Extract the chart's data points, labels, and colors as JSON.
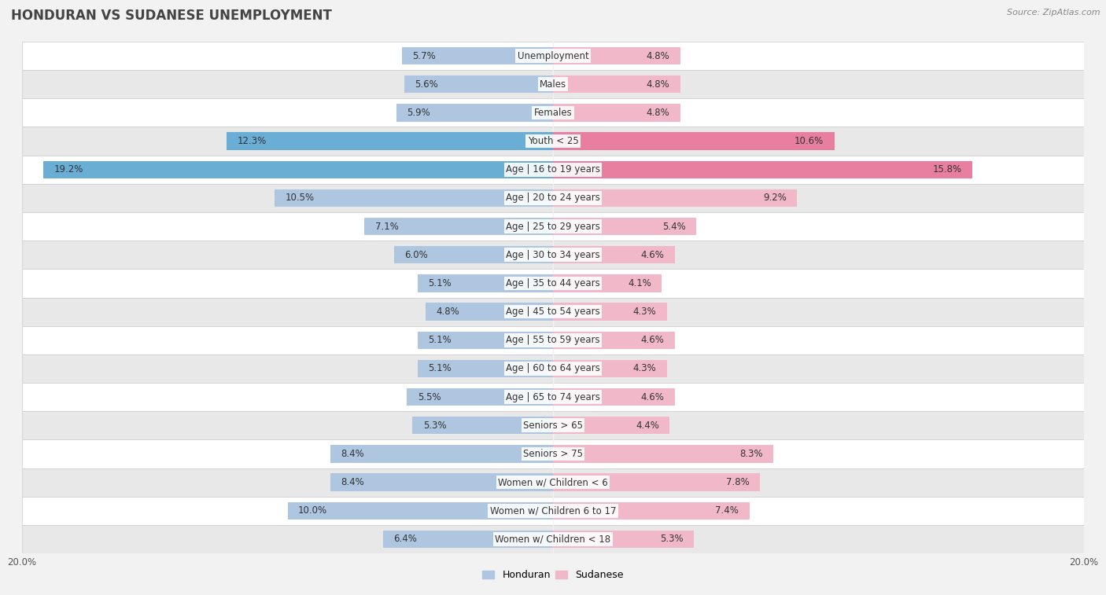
{
  "title": "HONDURAN VS SUDANESE UNEMPLOYMENT",
  "source": "Source: ZipAtlas.com",
  "categories": [
    "Unemployment",
    "Males",
    "Females",
    "Youth < 25",
    "Age | 16 to 19 years",
    "Age | 20 to 24 years",
    "Age | 25 to 29 years",
    "Age | 30 to 34 years",
    "Age | 35 to 44 years",
    "Age | 45 to 54 years",
    "Age | 55 to 59 years",
    "Age | 60 to 64 years",
    "Age | 65 to 74 years",
    "Seniors > 65",
    "Seniors > 75",
    "Women w/ Children < 6",
    "Women w/ Children 6 to 17",
    "Women w/ Children < 18"
  ],
  "honduran": [
    5.7,
    5.6,
    5.9,
    12.3,
    19.2,
    10.5,
    7.1,
    6.0,
    5.1,
    4.8,
    5.1,
    5.1,
    5.5,
    5.3,
    8.4,
    8.4,
    10.0,
    6.4
  ],
  "sudanese": [
    4.8,
    4.8,
    4.8,
    10.6,
    15.8,
    9.2,
    5.4,
    4.6,
    4.1,
    4.3,
    4.6,
    4.3,
    4.6,
    4.4,
    8.3,
    7.8,
    7.4,
    5.3
  ],
  "honduran_color_normal": "#aec6e0",
  "sudanese_color_normal": "#f0b8c8",
  "honduran_color_highlight": "#6aaed6",
  "sudanese_color_highlight": "#e87fa0",
  "highlight_rows": [
    3,
    4
  ],
  "bar_height": 0.62,
  "max_val": 20.0,
  "fig_bg": "#f2f2f2",
  "row_bg_odd": "#ffffff",
  "row_bg_even": "#e8e8e8",
  "title_fontsize": 12,
  "label_fontsize": 8.5,
  "category_fontsize": 8.5,
  "axis_fontsize": 8.5,
  "legend_fontsize": 9
}
